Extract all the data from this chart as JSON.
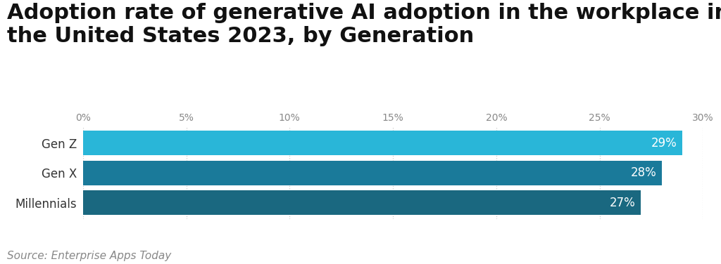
{
  "title": "Adoption rate of generative AI adoption in the workplace in\nthe United States 2023, by Generation",
  "categories": [
    "Gen Z",
    "Gen X",
    "Millennials"
  ],
  "values": [
    29,
    28,
    27
  ],
  "bar_colors": [
    "#29B6D8",
    "#1A7A9A",
    "#1A6880"
  ],
  "value_labels": [
    "29%",
    "28%",
    "27%"
  ],
  "source": "Source: Enterprise Apps Today",
  "xlim": [
    0,
    30
  ],
  "xticks": [
    0,
    5,
    10,
    15,
    20,
    25,
    30
  ],
  "xtick_labels": [
    "0%",
    "5%",
    "10%",
    "15%",
    "20%",
    "25%",
    "30%"
  ],
  "background_color": "#ffffff",
  "title_fontsize": 22,
  "label_fontsize": 12,
  "value_fontsize": 12,
  "source_fontsize": 11,
  "bar_height": 0.82
}
